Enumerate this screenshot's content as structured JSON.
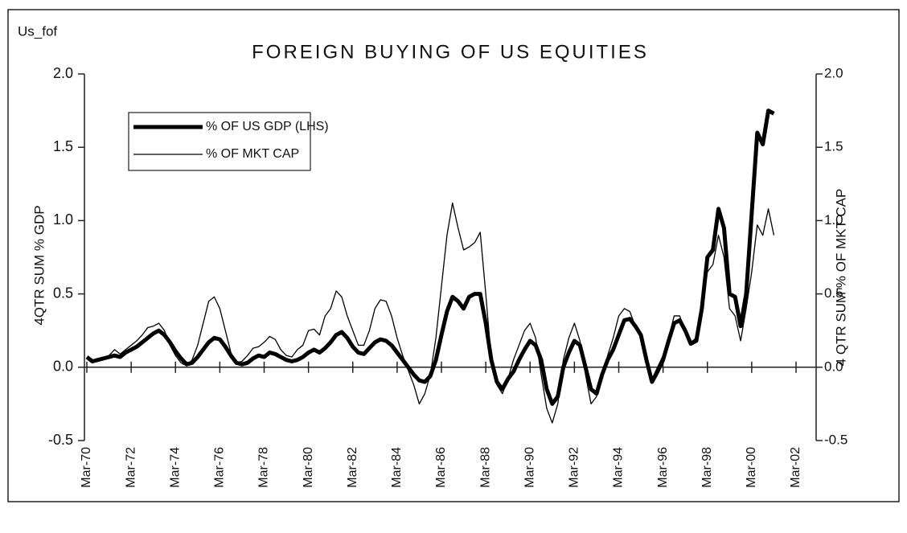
{
  "chart_data": {
    "type": "line",
    "title": "FOREIGN BUYING OF US EQUITIES",
    "corner_label": "Us_fof",
    "ylabel": "4QTR SUM % GDP",
    "y2label": "4 QTR SUM % OF MKT CAP",
    "ylim": [
      -0.5,
      2.0
    ],
    "yticks": [
      -0.5,
      {
        "value": 0,
        "label": "0.0"
      },
      0.5,
      {
        "value": 1,
        "label": "1.0"
      },
      1.5,
      {
        "value": 2,
        "label": "2.0"
      }
    ],
    "y2lim": [
      -0.5,
      2.0
    ],
    "y2ticks": [
      -0.5,
      {
        "value": 0,
        "label": "0.0"
      },
      0.5,
      {
        "value": 1,
        "label": "1.0"
      },
      1.5,
      {
        "value": 2,
        "label": "2.0"
      }
    ],
    "xlim": [
      1970,
      2002
    ],
    "xticks": [
      {
        "value": 1970,
        "label": "Mar-70"
      },
      {
        "value": 1972,
        "label": "Mar-72"
      },
      {
        "value": 1974,
        "label": "Mar-74"
      },
      {
        "value": 1976,
        "label": "Mar-76"
      },
      {
        "value": 1978,
        "label": "Mar-78"
      },
      {
        "value": 1980,
        "label": "Mar-80"
      },
      {
        "value": 1982,
        "label": "Mar-82"
      },
      {
        "value": 1984,
        "label": "Mar-84"
      },
      {
        "value": 1986,
        "label": "Mar-86"
      },
      {
        "value": 1988,
        "label": "Mar-88"
      },
      {
        "value": 1990,
        "label": "Mar-90"
      },
      {
        "value": 1992,
        "label": "Mar-92"
      },
      {
        "value": 1994,
        "label": "Mar-94"
      },
      {
        "value": 1996,
        "label": "Mar-96"
      },
      {
        "value": 1998,
        "label": "Mar-98"
      },
      {
        "value": 2000,
        "label": "Mar-00"
      },
      {
        "value": 2002,
        "label": "Mar-02"
      }
    ],
    "x": [
      1970,
      1970.25,
      1970.5,
      1970.75,
      1971,
      1971.25,
      1971.5,
      1971.75,
      1972,
      1972.25,
      1972.5,
      1972.75,
      1973,
      1973.25,
      1973.5,
      1973.75,
      1974,
      1974.25,
      1974.5,
      1974.75,
      1975,
      1975.25,
      1975.5,
      1975.75,
      1976,
      1976.25,
      1976.5,
      1976.75,
      1977,
      1977.25,
      1977.5,
      1977.75,
      1978,
      1978.25,
      1978.5,
      1978.75,
      1979,
      1979.25,
      1979.5,
      1979.75,
      1980,
      1980.25,
      1980.5,
      1980.75,
      1981,
      1981.25,
      1981.5,
      1981.75,
      1982,
      1982.25,
      1982.5,
      1982.75,
      1983,
      1983.25,
      1983.5,
      1983.75,
      1984,
      1984.25,
      1984.5,
      1984.75,
      1985,
      1985.25,
      1985.5,
      1985.75,
      1986,
      1986.25,
      1986.5,
      1986.75,
      1987,
      1987.25,
      1987.5,
      1987.75,
      1988,
      1988.25,
      1988.5,
      1988.75,
      1989,
      1989.25,
      1989.5,
      1989.75,
      1990,
      1990.25,
      1990.5,
      1990.75,
      1991,
      1991.25,
      1991.5,
      1991.75,
      1992,
      1992.25,
      1992.5,
      1992.75,
      1993,
      1993.25,
      1993.5,
      1993.75,
      1994,
      1994.25,
      1994.5,
      1994.75,
      1995,
      1995.25,
      1995.5,
      1995.75,
      1996,
      1996.25,
      1996.5,
      1996.75,
      1997,
      1997.25,
      1997.5,
      1997.75,
      1998,
      1998.25,
      1998.5,
      1998.75,
      1999,
      1999.25,
      1999.5,
      1999.75,
      2000,
      2000.25,
      2000.5,
      2000.75,
      2001
    ],
    "legend": "upper left",
    "series": [
      {
        "name": "% OF US GDP (LHS)",
        "color": "#000000",
        "values": [
          0.07,
          0.04,
          0.05,
          0.06,
          0.07,
          0.08,
          0.07,
          0.1,
          0.12,
          0.14,
          0.17,
          0.2,
          0.23,
          0.25,
          0.22,
          0.17,
          0.11,
          0.06,
          0.02,
          0.03,
          0.07,
          0.12,
          0.17,
          0.2,
          0.19,
          0.14,
          0.08,
          0.03,
          0.02,
          0.03,
          0.06,
          0.08,
          0.07,
          0.1,
          0.09,
          0.07,
          0.05,
          0.04,
          0.05,
          0.07,
          0.1,
          0.12,
          0.1,
          0.13,
          0.17,
          0.22,
          0.24,
          0.2,
          0.14,
          0.1,
          0.09,
          0.13,
          0.17,
          0.19,
          0.18,
          0.15,
          0.1,
          0.05,
          0.0,
          -0.05,
          -0.09,
          -0.1,
          -0.06,
          0.05,
          0.22,
          0.38,
          0.48,
          0.45,
          0.4,
          0.48,
          0.5,
          0.5,
          0.3,
          0.05,
          -0.1,
          -0.15,
          -0.08,
          -0.03,
          0.05,
          0.12,
          0.18,
          0.15,
          0.05,
          -0.15,
          -0.25,
          -0.2,
          0.0,
          0.1,
          0.18,
          0.15,
          0.0,
          -0.15,
          -0.18,
          -0.05,
          0.05,
          0.12,
          0.22,
          0.32,
          0.33,
          0.28,
          0.22,
          0.05,
          -0.1,
          -0.03,
          0.05,
          0.18,
          0.3,
          0.32,
          0.25,
          0.16,
          0.18,
          0.4,
          0.75,
          0.8,
          1.08,
          0.95,
          0.5,
          0.48,
          0.28,
          0.5,
          1.05,
          1.6,
          1.52,
          1.75,
          1.73
        ]
      },
      {
        "name": "% OF MKT CAP",
        "color": "#000000",
        "axis": "y2",
        "values": [
          0.06,
          0.03,
          0.05,
          0.06,
          0.08,
          0.12,
          0.09,
          0.12,
          0.15,
          0.18,
          0.22,
          0.27,
          0.28,
          0.3,
          0.25,
          0.15,
          0.08,
          0.03,
          0.01,
          0.05,
          0.15,
          0.3,
          0.45,
          0.48,
          0.4,
          0.25,
          0.1,
          0.03,
          0.04,
          0.08,
          0.13,
          0.14,
          0.17,
          0.21,
          0.19,
          0.12,
          0.08,
          0.07,
          0.12,
          0.15,
          0.25,
          0.26,
          0.22,
          0.35,
          0.4,
          0.52,
          0.48,
          0.35,
          0.25,
          0.15,
          0.15,
          0.25,
          0.4,
          0.46,
          0.45,
          0.35,
          0.2,
          0.08,
          -0.02,
          -0.12,
          -0.25,
          -0.18,
          -0.05,
          0.2,
          0.55,
          0.9,
          1.12,
          0.95,
          0.8,
          0.82,
          0.85,
          0.92,
          0.5,
          0.05,
          -0.12,
          -0.18,
          -0.08,
          0.05,
          0.15,
          0.25,
          0.3,
          0.2,
          -0.05,
          -0.28,
          -0.38,
          -0.25,
          0.05,
          0.2,
          0.3,
          0.18,
          -0.05,
          -0.25,
          -0.2,
          -0.05,
          0.08,
          0.2,
          0.35,
          0.4,
          0.38,
          0.28,
          0.2,
          0.05,
          -0.08,
          0.0,
          0.08,
          0.2,
          0.35,
          0.35,
          0.25,
          0.17,
          0.2,
          0.42,
          0.65,
          0.7,
          0.9,
          0.75,
          0.4,
          0.35,
          0.18,
          0.4,
          0.65,
          0.97,
          0.9,
          1.08,
          0.9
        ]
      }
    ]
  }
}
